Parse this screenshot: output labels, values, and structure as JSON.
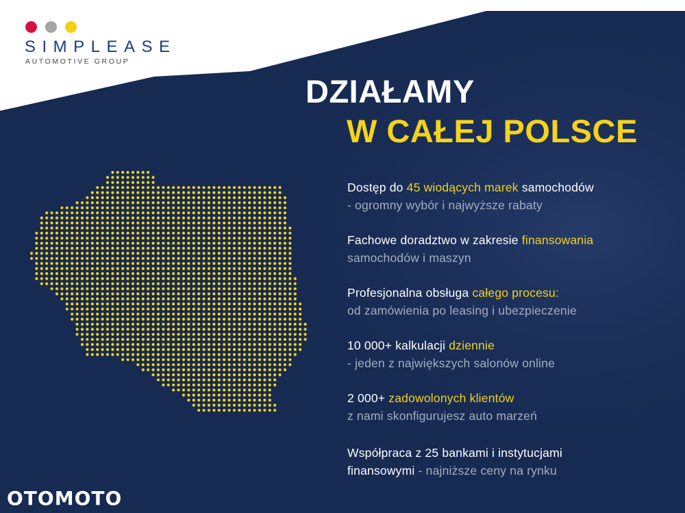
{
  "colors": {
    "background": "#172a52",
    "accent": "#f5d31c",
    "white": "#ffffff",
    "muted": "#a5aec0",
    "dot_red": "#d8103f",
    "dot_grey": "#a4a4a4",
    "dot_yellow": "#f6cf14"
  },
  "logo": {
    "name": "SIMPLEASE",
    "subtitle": "AUTOMOTIVE GROUP"
  },
  "headline": {
    "line1": "DZIAŁAMY",
    "line2": "W CAŁEJ POLSCE"
  },
  "map": {
    "icon": "poland-dotted-map"
  },
  "features": [
    {
      "l1": [
        "Dostęp do ",
        "45 wiodących marek",
        " samochodów"
      ],
      "l2": [
        "- ogromny wybór i najwyższe rabaty"
      ]
    },
    {
      "l1": [
        "Fachowe doradztwo w zakresie ",
        "finansowania"
      ],
      "l2": [
        "samochodów i maszyn"
      ]
    },
    {
      "l1": [
        "Profesjonalna obsługa ",
        "całego procesu:"
      ],
      "l2": [
        "od zamówienia po leasing i ubezpieczenie"
      ]
    },
    {
      "l1": [
        "10 000+ kalkulacji ",
        "dziennie"
      ],
      "l2": [
        "- jeden z największych salonów online"
      ]
    },
    {
      "l1": [
        "2 000+ ",
        "zadowolonych klientów"
      ],
      "l2": [
        "z nami skonfigurujesz auto marzeń"
      ]
    },
    {
      "l1": [
        "Współpraca z 25 bankami i instytucjami"
      ],
      "l2": [
        "finansowymi",
        " - najniższe ceny na rynku"
      ]
    }
  ],
  "footer": {
    "partner": "OTOMOTO"
  }
}
